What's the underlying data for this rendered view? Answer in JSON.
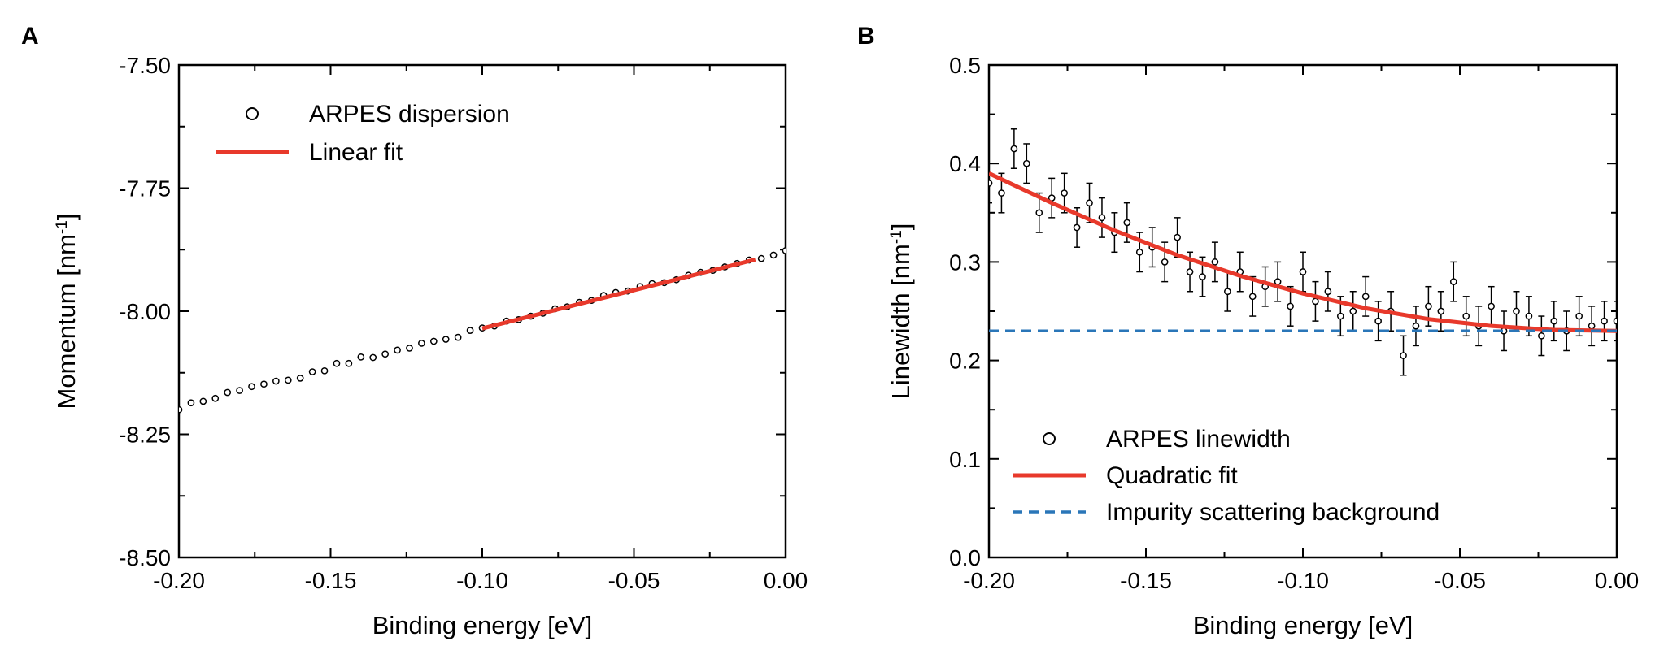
{
  "chart_data": [
    {
      "panel": "A",
      "type": "scatter",
      "xlabel": "Binding energy [eV]",
      "ylabel_main": "Momentum [nm",
      "ylabel_sup": "-1",
      "ylabel_close": "]",
      "xlim": [
        -0.2,
        0.0
      ],
      "ylim": [
        -8.5,
        -7.5
      ],
      "xticks": [
        -0.2,
        -0.15,
        -0.1,
        -0.05,
        0.0
      ],
      "xtick_labels": [
        "-0.20",
        "-0.15",
        "-0.10",
        "-0.05",
        "0.00"
      ],
      "yticks": [
        -8.5,
        -8.25,
        -8.0,
        -7.75,
        -7.5
      ],
      "ytick_labels": [
        "-8.50",
        "-8.25",
        "-8.00",
        "-7.75",
        "-7.50"
      ],
      "legend": [
        "ARPES dispersion",
        "Linear fit"
      ],
      "legend_location": "top-left",
      "series": [
        {
          "name": "ARPES dispersion",
          "marker": "open-circle",
          "x": [
            -0.2,
            -0.196,
            -0.192,
            -0.188,
            -0.184,
            -0.18,
            -0.176,
            -0.172,
            -0.168,
            -0.164,
            -0.16,
            -0.156,
            -0.152,
            -0.148,
            -0.144,
            -0.14,
            -0.136,
            -0.132,
            -0.128,
            -0.124,
            -0.12,
            -0.116,
            -0.112,
            -0.108,
            -0.104,
            -0.1,
            -0.096,
            -0.092,
            -0.088,
            -0.084,
            -0.08,
            -0.076,
            -0.072,
            -0.068,
            -0.064,
            -0.06,
            -0.056,
            -0.052,
            -0.048,
            -0.044,
            -0.04,
            -0.036,
            -0.032,
            -0.028,
            -0.024,
            -0.02,
            -0.016,
            -0.012,
            -0.008,
            -0.004,
            0.0
          ],
          "y": [
            -8.2,
            -8.186,
            -8.183,
            -8.177,
            -8.165,
            -8.161,
            -8.153,
            -8.148,
            -8.142,
            -8.14,
            -8.136,
            -8.123,
            -8.121,
            -8.106,
            -8.106,
            -8.093,
            -8.094,
            -8.087,
            -8.079,
            -8.075,
            -8.065,
            -8.061,
            -8.057,
            -8.053,
            -8.039,
            -8.034,
            -8.03,
            -8.02,
            -8.017,
            -8.01,
            -8.004,
            -7.995,
            -7.991,
            -7.982,
            -7.978,
            -7.968,
            -7.962,
            -7.959,
            -7.95,
            -7.944,
            -7.942,
            -7.936,
            -7.927,
            -7.921,
            -7.917,
            -7.91,
            -7.903,
            -7.896,
            -7.893,
            -7.886,
            -7.877
          ]
        },
        {
          "name": "Linear fit",
          "style": "line",
          "color": "#e8392b",
          "x": [
            -0.1,
            -0.01
          ],
          "y": [
            -8.035,
            -7.895
          ]
        }
      ]
    },
    {
      "panel": "B",
      "type": "scatter",
      "xlabel": "Binding energy [eV]",
      "ylabel_main": "Linewidth [nm",
      "ylabel_sup": "-1",
      "ylabel_close": "]",
      "xlim": [
        -0.2,
        0.0
      ],
      "ylim": [
        0.0,
        0.5
      ],
      "xticks": [
        -0.2,
        -0.15,
        -0.1,
        -0.05,
        0.0
      ],
      "xtick_labels": [
        "-0.20",
        "-0.15",
        "-0.10",
        "-0.05",
        "0.00"
      ],
      "yticks": [
        0.0,
        0.1,
        0.2,
        0.3,
        0.4,
        0.5
      ],
      "ytick_labels": [
        "0.0",
        "0.1",
        "0.2",
        "0.3",
        "0.4",
        "0.5"
      ],
      "legend": [
        "ARPES linewidth",
        "Quadratic fit",
        "Impurity scattering background"
      ],
      "legend_location": "bottom-left",
      "series": [
        {
          "name": "ARPES linewidth",
          "marker": "open-circle",
          "error_bar": 0.02,
          "x": [
            -0.2,
            -0.196,
            -0.192,
            -0.188,
            -0.184,
            -0.18,
            -0.176,
            -0.172,
            -0.168,
            -0.164,
            -0.16,
            -0.156,
            -0.152,
            -0.148,
            -0.144,
            -0.14,
            -0.136,
            -0.132,
            -0.128,
            -0.124,
            -0.12,
            -0.116,
            -0.112,
            -0.108,
            -0.104,
            -0.1,
            -0.096,
            -0.092,
            -0.088,
            -0.084,
            -0.08,
            -0.076,
            -0.072,
            -0.068,
            -0.064,
            -0.06,
            -0.056,
            -0.052,
            -0.048,
            -0.044,
            -0.04,
            -0.036,
            -0.032,
            -0.028,
            -0.024,
            -0.02,
            -0.016,
            -0.012,
            -0.008,
            -0.004,
            0.0
          ],
          "y": [
            0.38,
            0.37,
            0.415,
            0.4,
            0.35,
            0.365,
            0.37,
            0.335,
            0.36,
            0.345,
            0.33,
            0.34,
            0.31,
            0.315,
            0.3,
            0.325,
            0.29,
            0.285,
            0.3,
            0.27,
            0.29,
            0.265,
            0.275,
            0.28,
            0.255,
            0.29,
            0.26,
            0.27,
            0.245,
            0.25,
            0.265,
            0.24,
            0.25,
            0.205,
            0.235,
            0.255,
            0.25,
            0.28,
            0.245,
            0.235,
            0.255,
            0.23,
            0.25,
            0.245,
            0.225,
            0.24,
            0.23,
            0.245,
            0.235,
            0.24,
            0.24
          ]
        },
        {
          "name": "Quadratic fit",
          "style": "line",
          "color": "#e8392b",
          "x": [
            -0.2,
            -0.18,
            -0.16,
            -0.14,
            -0.12,
            -0.1,
            -0.08,
            -0.06,
            -0.04,
            -0.02,
            0.0
          ],
          "y": [
            0.39,
            0.36,
            0.332,
            0.307,
            0.286,
            0.268,
            0.253,
            0.242,
            0.235,
            0.231,
            0.23
          ]
        },
        {
          "name": "Impurity scattering background",
          "style": "dashed",
          "color": "#2a76b8",
          "x": [
            -0.2,
            0.0
          ],
          "y": [
            0.23,
            0.23
          ]
        }
      ]
    }
  ]
}
